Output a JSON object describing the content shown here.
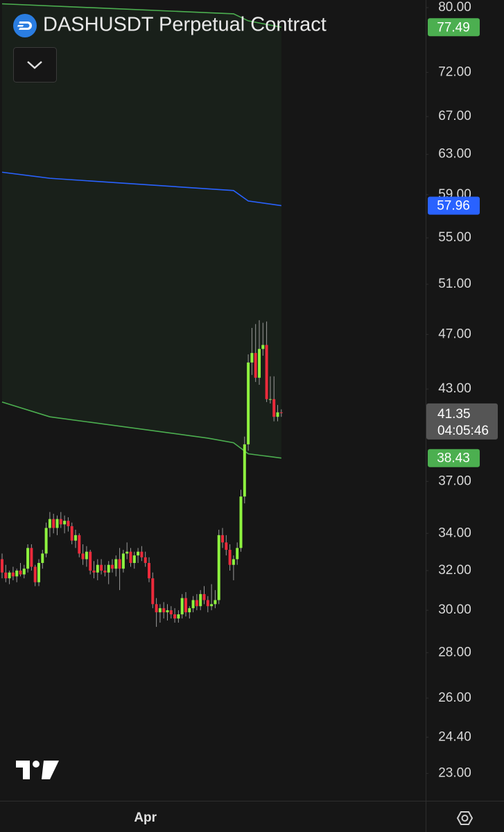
{
  "chart_data": {
    "type": "candlestick",
    "title": "DASHUSDT Perpetual Contract",
    "log_scale": true,
    "ylim": [
      22,
      81
    ],
    "yticks": [
      {
        "value": 80,
        "label": "80.00"
      },
      {
        "value": 72,
        "label": "72.00"
      },
      {
        "value": 67,
        "label": "67.00"
      },
      {
        "value": 63,
        "label": "63.00"
      },
      {
        "value": 59,
        "label": "59.00"
      },
      {
        "value": 55,
        "label": "55.00"
      },
      {
        "value": 51,
        "label": "51.00"
      },
      {
        "value": 47,
        "label": "47.00"
      },
      {
        "value": 43,
        "label": "43.00"
      },
      {
        "value": 37,
        "label": "37.00"
      },
      {
        "value": 34,
        "label": "34.00"
      },
      {
        "value": 32,
        "label": "32.00"
      },
      {
        "value": 30,
        "label": "30.00"
      },
      {
        "value": 28,
        "label": "28.00"
      },
      {
        "value": 26,
        "label": "26.00"
      },
      {
        "value": 24.4,
        "label": "24.40"
      },
      {
        "value": 23,
        "label": "23.00"
      }
    ],
    "categories": [
      null,
      null,
      null,
      null,
      null,
      null,
      null,
      null,
      null,
      null,
      null,
      null,
      null,
      null,
      null,
      null,
      null,
      null,
      null,
      null,
      null,
      null,
      null,
      null,
      null,
      null,
      null,
      null,
      null,
      null,
      null,
      null,
      null,
      null,
      null,
      null,
      null,
      null,
      null,
      "Apr",
      null,
      null,
      null,
      null,
      null,
      null,
      null,
      null,
      null,
      null,
      null,
      null,
      null,
      null,
      null,
      null,
      null,
      null,
      null,
      null,
      null,
      null,
      null,
      null,
      null,
      null,
      null,
      null,
      null,
      null,
      null,
      null,
      null,
      null,
      null,
      null,
      null
    ],
    "open": [
      32.6,
      31.9,
      31.6,
      31.9,
      31.7,
      32.0,
      31.8,
      32.1,
      33.2,
      32.2,
      31.4,
      32.4,
      32.9,
      34.3,
      34.8,
      34.3,
      34.8,
      34.5,
      34.7,
      34.4,
      33.6,
      33.9,
      32.9,
      32.6,
      33.0,
      32.0,
      31.9,
      32.3,
      32.0,
      31.9,
      32.3,
      32.1,
      32.6,
      32.1,
      32.9,
      33.0,
      32.4,
      32.8,
      33.0,
      32.7,
      32.4,
      31.6,
      30.3,
      29.9,
      30.1,
      29.9,
      30.0,
      29.8,
      29.6,
      29.8,
      30.6,
      29.9,
      30.1,
      30.5,
      30.2,
      30.8,
      30.5,
      30.2,
      30.3,
      30.5,
      33.9,
      33.5,
      33.1,
      32.3,
      32.6,
      33.2,
      36.1,
      39.3,
      44.9,
      45.6,
      43.8,
      45.9,
      46.2,
      42.3,
      42.3,
      41.1,
      41.4
    ],
    "high": [
      32.9,
      32.3,
      32.0,
      32.2,
      32.1,
      32.4,
      32.3,
      33.4,
      33.4,
      32.3,
      32.6,
      33.1,
      34.6,
      35.2,
      35.1,
      35.0,
      35.2,
      35.0,
      34.9,
      34.6,
      34.2,
      34.0,
      33.4,
      33.3,
      33.1,
      32.5,
      32.6,
      32.6,
      32.3,
      32.5,
      32.6,
      32.8,
      33.2,
      33.1,
      33.5,
      33.2,
      33.0,
      33.2,
      33.3,
      33.0,
      32.7,
      31.9,
      30.6,
      30.3,
      30.4,
      30.3,
      30.2,
      30.1,
      30.0,
      30.8,
      30.9,
      30.2,
      30.7,
      30.8,
      31.0,
      31.2,
      30.7,
      31.3,
      31.0,
      34.2,
      34.3,
      33.9,
      33.4,
      32.8,
      33.5,
      36.5,
      39.8,
      45.5,
      47.5,
      47.8,
      48.1,
      47.9,
      48.0,
      43.9,
      43.9,
      41.9,
      41.6
    ],
    "low": [
      31.6,
      31.4,
      31.3,
      31.5,
      31.4,
      31.7,
      31.6,
      31.9,
      32.0,
      31.2,
      31.2,
      32.1,
      32.7,
      33.8,
      34.0,
      33.9,
      34.3,
      34.0,
      34.1,
      33.4,
      33.2,
      32.7,
      32.3,
      32.2,
      31.8,
      31.6,
      31.5,
      31.8,
      31.7,
      31.3,
      31.9,
      31.7,
      31.0,
      31.9,
      32.6,
      32.2,
      32.1,
      32.4,
      32.5,
      32.2,
      31.4,
      30.1,
      29.2,
      29.4,
      29.6,
      29.5,
      29.6,
      29.4,
      29.4,
      29.6,
      29.7,
      29.6,
      29.9,
      30.0,
      30.0,
      30.3,
      29.9,
      30.0,
      30.1,
      30.3,
      33.2,
      32.8,
      32.0,
      31.5,
      32.3,
      33.0,
      35.7,
      38.9,
      44.0,
      43.5,
      43.3,
      45.4,
      42.1,
      42.0,
      40.8,
      40.8,
      41.1
    ],
    "close": [
      31.9,
      31.6,
      31.9,
      31.7,
      32.0,
      31.8,
      32.1,
      33.2,
      32.2,
      31.4,
      32.4,
      32.9,
      34.3,
      34.8,
      34.3,
      34.8,
      34.5,
      34.7,
      34.4,
      33.6,
      33.9,
      32.9,
      32.6,
      33.0,
      32.0,
      31.9,
      32.3,
      32.0,
      31.9,
      32.3,
      32.1,
      32.6,
      32.1,
      32.9,
      33.0,
      32.4,
      32.8,
      33.0,
      32.7,
      32.4,
      31.6,
      30.3,
      29.9,
      30.1,
      29.9,
      30.0,
      29.8,
      29.6,
      29.8,
      30.6,
      29.9,
      30.1,
      30.5,
      30.2,
      30.8,
      30.5,
      30.2,
      30.3,
      30.5,
      33.9,
      33.5,
      33.1,
      32.3,
      32.6,
      33.2,
      36.1,
      39.3,
      44.9,
      45.6,
      43.8,
      45.9,
      46.2,
      42.3,
      42.3,
      41.1,
      41.4,
      41.35
    ],
    "up_color": "#8ef33f",
    "down_color": "#ec2a3b",
    "wick_color": "#9a9a9a",
    "series": [
      {
        "color": "#4caf50",
        "x": [
          0,
          63,
          67,
          76
        ],
        "values": [
          80.5,
          79.2,
          78.3,
          77.49
        ]
      },
      {
        "color": "#2962ff",
        "x": [
          0,
          13,
          63,
          67,
          76
        ],
        "values": [
          61.2,
          60.6,
          59.4,
          58.4,
          57.96
        ]
      },
      {
        "color": "#4caf50",
        "x": [
          0,
          13,
          56,
          63,
          67,
          76
        ],
        "values": [
          42.1,
          41.1,
          39.7,
          39.4,
          38.7,
          38.43
        ]
      }
    ],
    "last_price": 41.35,
    "countdown": "04:05:46"
  }
}
